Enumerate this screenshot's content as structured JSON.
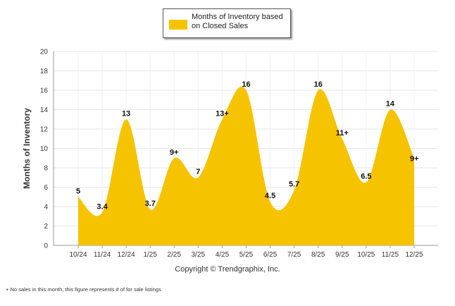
{
  "chart_data": {
    "type": "area",
    "title": "",
    "ylabel": "Months of Inventory",
    "xlabel": "",
    "ylim": [
      0,
      20
    ],
    "yticks": [
      0,
      2,
      4,
      6,
      8,
      10,
      12,
      14,
      16,
      18,
      20
    ],
    "grid": true,
    "legend_position": "top-center",
    "categories": [
      "10/24",
      "11/24",
      "12/24",
      "1/25",
      "2/25",
      "3/25",
      "4/25",
      "5/25",
      "6/25",
      "7/25",
      "8/25",
      "9/25",
      "10/25",
      "11/25",
      "12/25"
    ],
    "series": [
      {
        "name": "Months of Inventory based on Closed Sales",
        "color": "#f5c300",
        "values": [
          5,
          3.4,
          13,
          3.7,
          9,
          7,
          13,
          16,
          4.5,
          5.7,
          16,
          11,
          6.5,
          14,
          9
        ],
        "labels": [
          "5",
          "3.4",
          "13",
          "3.7",
          "9+",
          "7",
          "13+",
          "16",
          "4.5",
          "5.7",
          "16",
          "11+",
          "6.5",
          "14",
          "9+"
        ]
      }
    ]
  },
  "legend": {
    "label": "Months of Inventory based on Closed Sales",
    "color": "#f5c300"
  },
  "copyright": "Copyright © Trendgraphix, Inc.",
  "footnote": "+  No sales in this month, this figure represents # of for sale listings"
}
